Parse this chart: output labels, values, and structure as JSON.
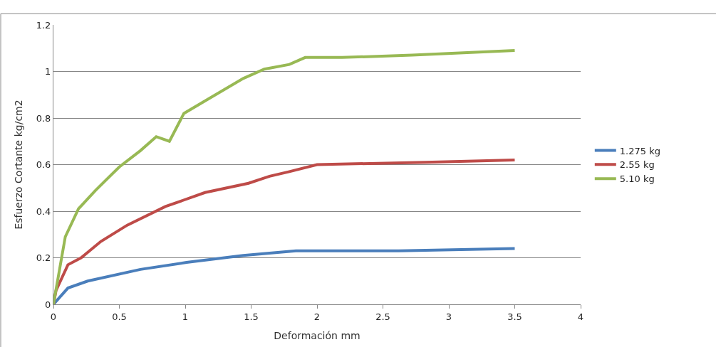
{
  "chart_data": {
    "type": "line",
    "xlabel": "Deformación mm",
    "ylabel": "Esfuerzo Cortante kg/cm2",
    "xlim": [
      0,
      4
    ],
    "xticks": [
      0,
      0.5,
      1,
      1.5,
      2,
      2.5,
      3,
      3.5,
      4
    ],
    "ylim": [
      0,
      1.2
    ],
    "yticks": [
      0,
      0.2,
      0.4,
      0.6,
      0.8,
      1,
      1.2
    ],
    "grid": "y",
    "legend": "right",
    "marker": "none",
    "line_style": "solid",
    "series": [
      {
        "name": "1.275 kg",
        "color": "#4a7ebb",
        "x": [
          0,
          0.11,
          0.26,
          0.66,
          1.01,
          1.44,
          1.84,
          2.62,
          3.5
        ],
        "values": [
          0,
          0.07,
          0.1,
          0.15,
          0.18,
          0.21,
          0.23,
          0.23,
          0.24
        ]
      },
      {
        "name": "2.55 kg",
        "color": "#be4b48",
        "x": [
          0,
          0.02,
          0.11,
          0.21,
          0.36,
          0.56,
          0.85,
          1.15,
          1.48,
          1.64,
          1.79,
          2.0,
          2.82,
          3.5
        ],
        "values": [
          0,
          0.06,
          0.17,
          0.2,
          0.27,
          0.34,
          0.42,
          0.48,
          0.52,
          0.55,
          0.57,
          0.6,
          0.61,
          0.62
        ]
      },
      {
        "name": "5.10 kg",
        "color": "#98b954",
        "x": [
          0,
          0.09,
          0.19,
          0.32,
          0.5,
          0.66,
          0.78,
          0.88,
          0.99,
          1.17,
          1.44,
          1.6,
          1.79,
          1.91,
          2.19,
          2.72,
          3.5
        ],
        "values": [
          0,
          0.29,
          0.41,
          0.49,
          0.59,
          0.66,
          0.72,
          0.7,
          0.82,
          0.88,
          0.97,
          1.01,
          1.03,
          1.06,
          1.06,
          1.07,
          1.09
        ]
      }
    ]
  }
}
